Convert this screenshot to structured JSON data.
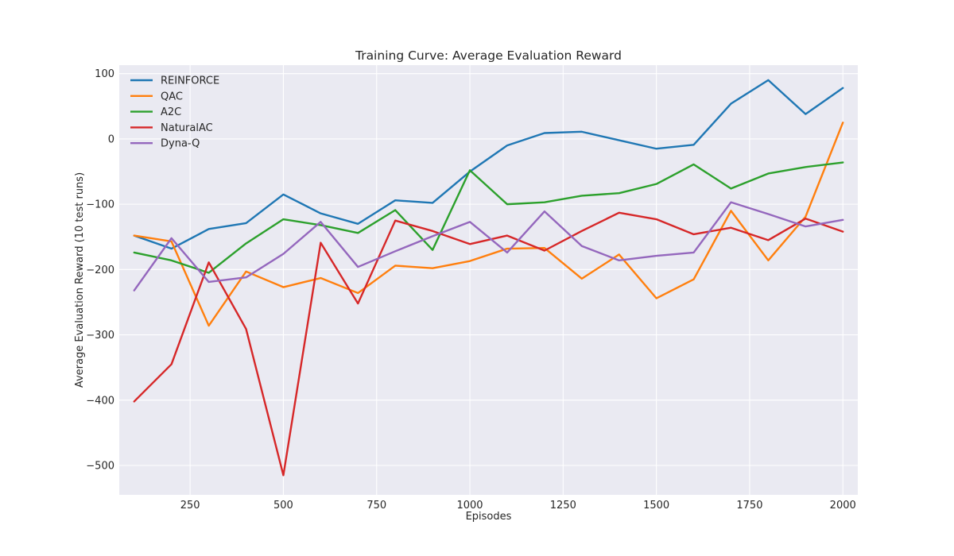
{
  "chart_data": {
    "type": "line",
    "title": "Training Curve: Average Evaluation Reward",
    "xlabel": "Episodes",
    "ylabel": "Average Evaluation Reward (10 test runs)",
    "xlim": [
      60,
      2040
    ],
    "ylim": [
      -545,
      113
    ],
    "xticks": [
      250,
      500,
      750,
      1000,
      1250,
      1500,
      1750,
      2000
    ],
    "yticks": [
      -500,
      -400,
      -300,
      -200,
      -100,
      0,
      100
    ],
    "ytick_labels": [
      "−500",
      "−400",
      "−300",
      "−200",
      "−100",
      "0",
      "100"
    ],
    "grid": true,
    "legend_position": "top-left",
    "x": [
      100,
      200,
      300,
      400,
      500,
      600,
      700,
      800,
      900,
      1000,
      1100,
      1200,
      1300,
      1400,
      1500,
      1600,
      1700,
      1800,
      1900,
      2000
    ],
    "series": [
      {
        "name": "REINFORCE",
        "color": "#1f77b4",
        "values": [
          -148,
          -168,
          -138,
          -129,
          -85,
          -114,
          -130,
          -94,
          -98,
          -50,
          -10,
          9,
          11,
          -2,
          -15,
          -9,
          54,
          90,
          38,
          78
        ]
      },
      {
        "name": "QAC",
        "color": "#ff7f0e",
        "values": [
          -148,
          -157,
          -286,
          -203,
          -227,
          -213,
          -236,
          -194,
          -198,
          -187,
          -168,
          -167,
          -214,
          -177,
          -244,
          -215,
          -110,
          -186,
          -119,
          25
        ]
      },
      {
        "name": "A2C",
        "color": "#2ca02c",
        "values": [
          -174,
          -186,
          -205,
          -160,
          -123,
          -132,
          -144,
          -109,
          -170,
          -48,
          -100,
          -97,
          -87,
          -83,
          -69,
          -39,
          -76,
          -53,
          -43,
          -36
        ]
      },
      {
        "name": "NaturalAC",
        "color": "#d62728",
        "values": [
          -402,
          -345,
          -189,
          -291,
          -515,
          -159,
          -252,
          -125,
          -141,
          -161,
          -148,
          -171,
          -141,
          -113,
          -123,
          -146,
          -136,
          -155,
          -122,
          -142
        ]
      },
      {
        "name": "Dyna-Q",
        "color": "#9467bd",
        "values": [
          -232,
          -152,
          -219,
          -212,
          -176,
          -127,
          -196,
          -172,
          -149,
          -127,
          -174,
          -111,
          -164,
          -186,
          -179,
          -174,
          -97,
          -115,
          -134,
          -124
        ]
      }
    ]
  }
}
